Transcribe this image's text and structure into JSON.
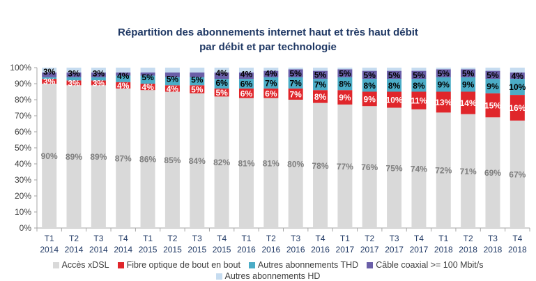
{
  "chart_data": {
    "type": "bar",
    "stacked": true,
    "title": [
      "Répartition des abonnements internet haut et très haut débit",
      "par débit et par technologie"
    ],
    "categories": [
      [
        "T1",
        "2014"
      ],
      [
        "T2",
        "2014"
      ],
      [
        "T3",
        "2014"
      ],
      [
        "T4",
        "2014"
      ],
      [
        "T1",
        "2015"
      ],
      [
        "T2",
        "2015"
      ],
      [
        "T3",
        "2015"
      ],
      [
        "T4",
        "2015"
      ],
      [
        "T1",
        "2016"
      ],
      [
        "T2",
        "2016"
      ],
      [
        "T3",
        "2016"
      ],
      [
        "T4",
        "2016"
      ],
      [
        "T1",
        "2017"
      ],
      [
        "T2",
        "2017"
      ],
      [
        "T3",
        "2017"
      ],
      [
        "T4",
        "2017"
      ],
      [
        "T1",
        "2018"
      ],
      [
        "T2",
        "2018"
      ],
      [
        "T3",
        "2018"
      ],
      [
        "T4",
        "2018"
      ]
    ],
    "ylim": [
      0,
      100
    ],
    "yticks": [
      "0%",
      "10%",
      "20%",
      "30%",
      "40%",
      "50%",
      "60%",
      "70%",
      "80%",
      "90%",
      "100%"
    ],
    "legend_position": "bottom",
    "series": [
      {
        "name": "Accès xDSL",
        "color": "#d9d9d9",
        "label_color": "#7f7f7f",
        "values": [
          90,
          89,
          89,
          87,
          86,
          85,
          84,
          82,
          81,
          81,
          80,
          78,
          77,
          76,
          75,
          74,
          72,
          71,
          69,
          67
        ],
        "labels": [
          "90%",
          "89%",
          "89%",
          "87%",
          "86%",
          "85%",
          "84%",
          "82%",
          "81%",
          "81%",
          "80%",
          "78%",
          "77%",
          "76%",
          "75%",
          "74%",
          "72%",
          "71%",
          "69%",
          "67%"
        ]
      },
      {
        "name": "Fibre optique de bout en bout",
        "color": "#e0262b",
        "label_color": "#ffffff",
        "values": [
          3,
          3,
          3,
          4,
          4,
          4,
          5,
          5,
          6,
          6,
          7,
          8,
          9,
          9,
          10,
          11,
          13,
          14,
          15,
          16
        ],
        "labels": [
          "3%",
          "3%",
          "3%",
          "4%",
          "4%",
          "4%",
          "5%",
          "5%",
          "6%",
          "6%",
          "7%",
          "8%",
          "9%",
          "9%",
          "10%",
          "11%",
          "13%",
          "14%",
          "15%",
          "16%"
        ]
      },
      {
        "name": "Autres abonnements THD",
        "color": "#4bacc6",
        "label_color": "#000000",
        "values": [
          1,
          2,
          2,
          4,
          5,
          5,
          5,
          6,
          6,
          7,
          7,
          7,
          8,
          8,
          8,
          8,
          9,
          9,
          9,
          10
        ],
        "labels": [
          null,
          null,
          null,
          "4%",
          "5%",
          "5%",
          "5%",
          "6%",
          "6%",
          "7%",
          "7%",
          "7%",
          "8%",
          "8%",
          "8%",
          "8%",
          "9%",
          "9%",
          "9%",
          "10%"
        ]
      },
      {
        "name": "Câble coaxial >= 100 Mbit/s",
        "color": "#6a5fa8",
        "label_color": "#000000",
        "values": [
          3,
          3,
          3,
          2,
          2,
          3,
          3,
          4,
          4,
          4,
          5,
          5,
          5,
          5,
          5,
          5,
          5,
          5,
          5,
          4
        ],
        "labels": [
          "3%",
          "3%",
          "3%",
          null,
          null,
          null,
          null,
          "4%",
          "4%",
          "4%",
          "5%",
          "5%",
          "5%",
          "5%",
          "5%",
          "5%",
          "5%",
          "5%",
          "5%",
          "4%"
        ]
      },
      {
        "name": "Autres abonnements HD",
        "color": "#c6dcf0",
        "label_color": "#000000",
        "values": [
          3,
          3,
          3,
          3,
          3,
          3,
          3,
          3,
          3,
          2,
          1,
          2,
          1,
          2,
          2,
          2,
          1,
          1,
          2,
          3
        ],
        "labels": []
      }
    ]
  }
}
